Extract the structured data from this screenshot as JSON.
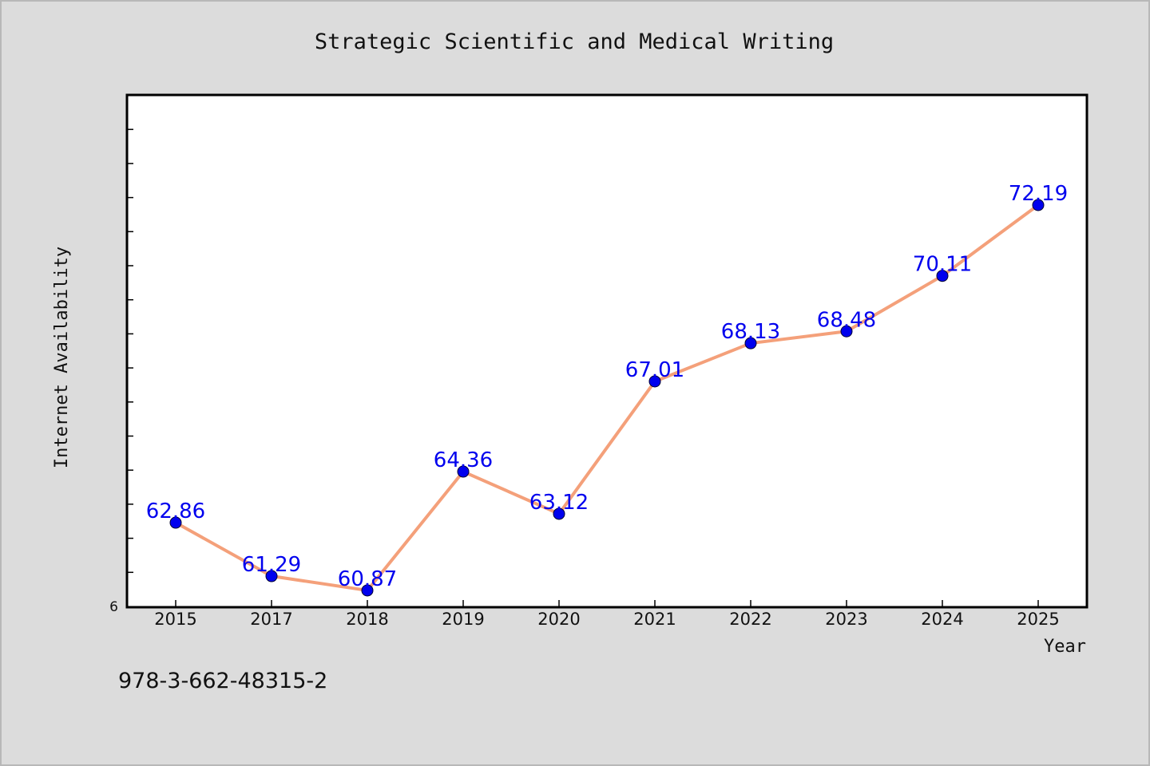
{
  "chart_data": {
    "type": "line",
    "title": "Strategic Scientific and Medical Writing",
    "xlabel": "Year",
    "ylabel": "Internet Availability",
    "categories": [
      "2015",
      "2017",
      "2018",
      "2019",
      "2020",
      "2021",
      "2022",
      "2023",
      "2024",
      "2025"
    ],
    "values": [
      62.86,
      61.29,
      60.87,
      64.36,
      63.12,
      67.01,
      68.13,
      68.48,
      70.11,
      72.19
    ],
    "data_labels": [
      "62.86",
      "61.29",
      "60.87",
      "64.36",
      "63.12",
      "67.01",
      "68.13",
      "68.48",
      "70.11",
      "72.19"
    ],
    "ylim": [
      60.4,
      75.4
    ],
    "y_tick_labels": [
      "6"
    ],
    "grid": false,
    "line_color": "#f4a07a",
    "marker_color": "#0000ee",
    "label_color": "#0000ee"
  },
  "footer": {
    "isbn": "978-3-662-48315-2"
  }
}
